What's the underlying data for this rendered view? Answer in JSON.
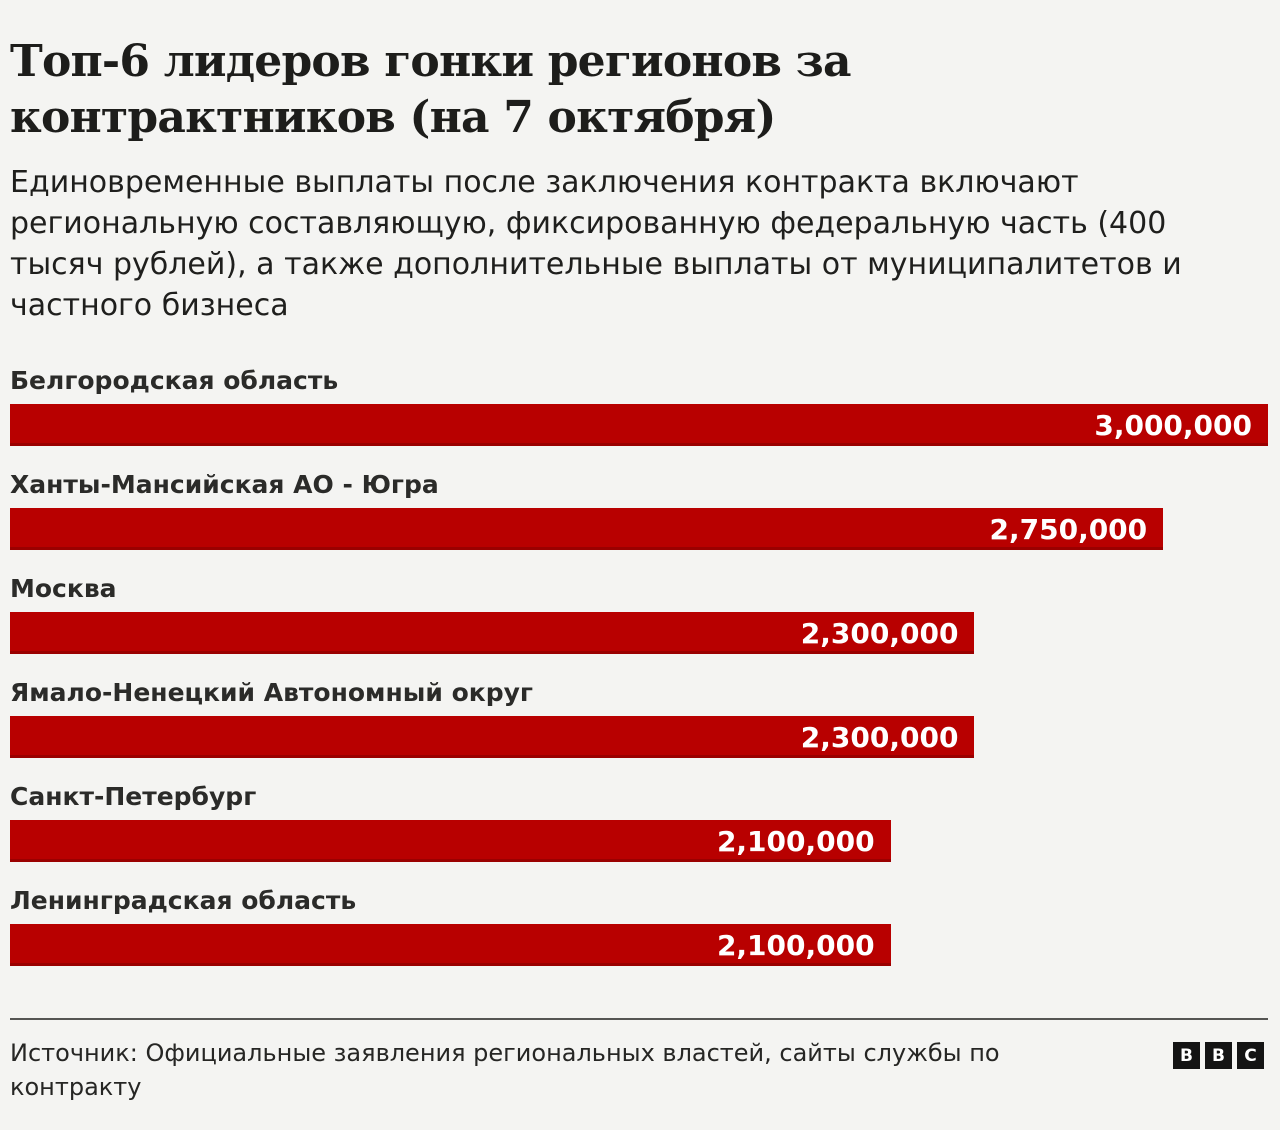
{
  "chart_data": {
    "type": "bar",
    "orientation": "horizontal",
    "title": "Топ-6 лидеров гонки регионов за контрактников (на 7 октября)",
    "subtitle": "Единовременные выплаты после заключения контракта включают региональную составляющую, фиксированную федеральную часть (400 тысяч рублей), а также дополнительные выплаты от муниципалитетов и частного бизнеса",
    "categories": [
      "Белгородская область",
      "Ханты-Мансийская АО - Югра",
      "Москва",
      "Ямало-Ненецкий Автономный округ",
      "Санкт-Петербург",
      "Ленинградская область"
    ],
    "values": [
      3000000,
      2750000,
      2300000,
      2300000,
      2100000,
      2100000
    ],
    "value_labels": [
      "3,000,000",
      "2,750,000",
      "2,300,000",
      "2,300,000",
      "2,100,000",
      "2,100,000"
    ],
    "xlim": [
      0,
      3000000
    ],
    "grid": false,
    "legend": false,
    "bar_color": "#b80000",
    "value_label_color": "#ffffff"
  },
  "footer": {
    "source_text": "Источник: Официальные заявления региональных властей, сайты службы по контракту",
    "logo_letters": [
      "B",
      "B",
      "C"
    ]
  },
  "colors": {
    "background": "#f4f4f2",
    "title_text": "#1d1d1b",
    "body_text": "#1f1f1d",
    "separator": "#555553",
    "logo_black": "#141414"
  }
}
